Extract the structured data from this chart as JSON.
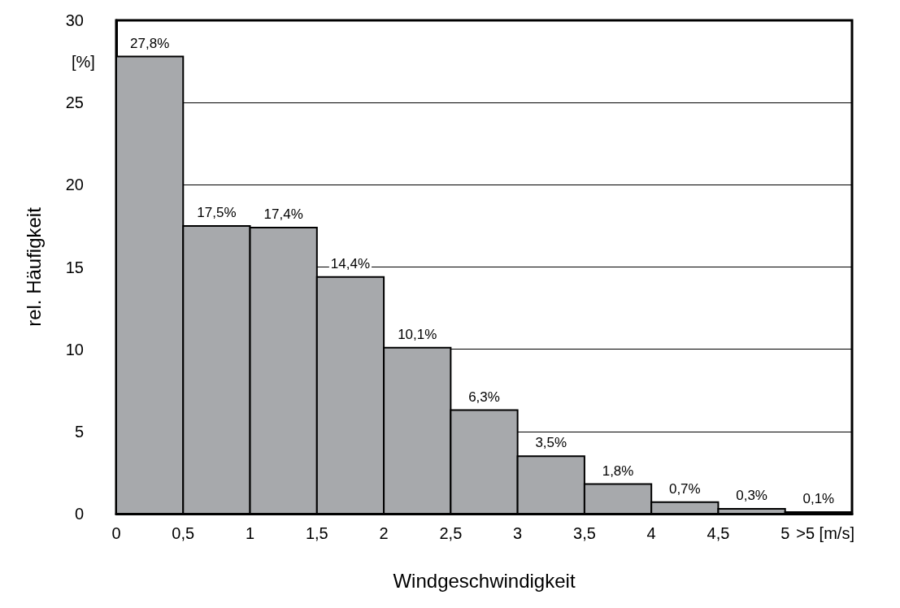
{
  "chart_data": {
    "type": "histogram",
    "xlabel": "Windgeschwindigkeit",
    "ylabel": "rel. Häufigkeit",
    "annotations": [
      "[%]"
    ],
    "bins": [
      0,
      0.5,
      1,
      1.5,
      2,
      2.5,
      3,
      3.5,
      4,
      4.5,
      5,
      5.5
    ],
    "values": [
      27.8,
      17.5,
      17.4,
      14.4,
      10.1,
      6.3,
      3.5,
      1.8,
      0.7,
      0.3,
      0.1
    ],
    "value_labels": [
      "27,8%",
      "17,5%",
      "17,4%",
      "14,4%",
      "10,1%",
      "6,3%",
      "3,5%",
      "1,8%",
      "0,7%",
      "0,3%",
      "0,1%"
    ],
    "color": "#a7a9ac",
    "xlim": [
      0,
      5.5
    ],
    "xticks": [
      0,
      {
        "value": 0.5,
        "label": "0,5"
      },
      1,
      {
        "value": 1.5,
        "label": "1,5"
      },
      2,
      {
        "value": 2.5,
        "label": "2,5"
      },
      3,
      {
        "value": 3.5,
        "label": "3,5"
      },
      4,
      {
        "value": 4.5,
        "label": "4,5"
      },
      5,
      {
        "value": 5.3,
        "label": ">5 [m/s]"
      }
    ],
    "ylim": [
      0,
      30
    ],
    "yticks": [
      0,
      5,
      10,
      15,
      20,
      25,
      30
    ],
    "grid": "y"
  }
}
